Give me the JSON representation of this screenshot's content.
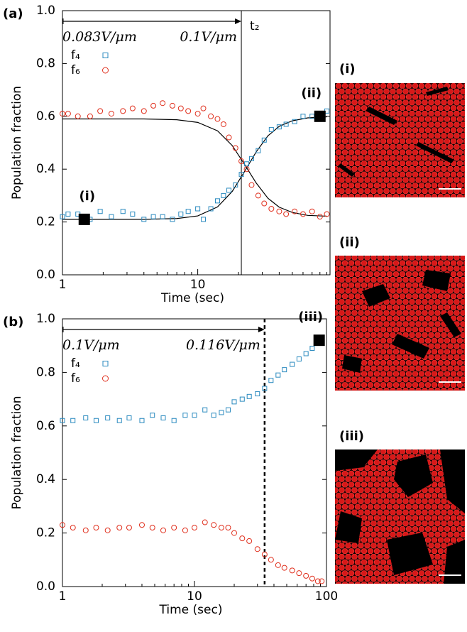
{
  "chart_data": [
    {
      "type": "scatter",
      "panel": "(a)",
      "xlabel": "Time (sec)",
      "ylabel": "Population fraction",
      "xscale": "log",
      "xlim": [
        1,
        95
      ],
      "xticks": [
        1,
        10
      ],
      "ylim": [
        0,
        1
      ],
      "yticks": [
        {
          "value": 0,
          "label": "0.0"
        },
        0.2,
        0.4,
        0.6,
        0.8,
        {
          "value": 1,
          "label": "1.0"
        }
      ],
      "series": [
        {
          "name": "f₄",
          "color": "#2a8abf",
          "marker": "square",
          "x": [
            1,
            1.1,
            1.3,
            1.6,
            1.9,
            2.3,
            2.8,
            3.3,
            4,
            4.7,
            5.5,
            6.5,
            7.5,
            8.5,
            10,
            11,
            12.5,
            14,
            15.5,
            17,
            19,
            21,
            23,
            25,
            28,
            31,
            35,
            40,
            45,
            52,
            60,
            70,
            80,
            90
          ],
          "values": [
            0.22,
            0.23,
            0.23,
            0.21,
            0.24,
            0.22,
            0.24,
            0.23,
            0.21,
            0.22,
            0.22,
            0.21,
            0.23,
            0.24,
            0.25,
            0.21,
            0.25,
            0.28,
            0.3,
            0.32,
            0.34,
            0.38,
            0.42,
            0.44,
            0.47,
            0.51,
            0.55,
            0.56,
            0.57,
            0.58,
            0.6,
            0.6,
            0.61,
            0.62
          ]
        },
        {
          "name": "f₆",
          "color": "#e0301e",
          "marker": "circle",
          "x": [
            1,
            1.1,
            1.3,
            1.6,
            1.9,
            2.3,
            2.8,
            3.3,
            4,
            4.7,
            5.5,
            6.5,
            7.5,
            8.5,
            10,
            11,
            12.5,
            14,
            15.5,
            17,
            19,
            21,
            23,
            25,
            28,
            31,
            35,
            40,
            45,
            52,
            60,
            70,
            80,
            90
          ],
          "values": [
            0.61,
            0.61,
            0.6,
            0.6,
            0.62,
            0.61,
            0.62,
            0.63,
            0.62,
            0.64,
            0.65,
            0.64,
            0.63,
            0.62,
            0.61,
            0.63,
            0.6,
            0.59,
            0.57,
            0.52,
            0.48,
            0.43,
            0.4,
            0.34,
            0.3,
            0.27,
            0.25,
            0.24,
            0.23,
            0.24,
            0.23,
            0.24,
            0.22,
            0.23
          ]
        }
      ],
      "fits": [
        {
          "x": [
            1,
            2,
            4,
            7,
            10,
            14,
            18,
            22,
            27,
            33,
            40,
            50,
            65,
            90
          ],
          "values": [
            0.21,
            0.21,
            0.21,
            0.213,
            0.223,
            0.257,
            0.316,
            0.388,
            0.465,
            0.526,
            0.562,
            0.583,
            0.594,
            0.598
          ]
        },
        {
          "x": [
            1,
            2,
            4,
            7,
            10,
            14,
            18,
            22,
            27,
            33,
            40,
            50,
            65,
            90
          ],
          "values": [
            0.59,
            0.59,
            0.59,
            0.587,
            0.577,
            0.545,
            0.489,
            0.421,
            0.348,
            0.29,
            0.256,
            0.236,
            0.225,
            0.222
          ]
        }
      ],
      "vline": {
        "x": 21,
        "label": "t₂",
        "style": "solid"
      },
      "arrow_labels": [
        "0.083V/μm",
        "0.1V/μm"
      ],
      "markers": [
        {
          "label": "(i)",
          "x": 1.45,
          "y": 0.21
        },
        {
          "label": "(ii)",
          "x": 80,
          "y": 0.6
        }
      ]
    },
    {
      "type": "scatter",
      "panel": "(b)",
      "xlabel": "Time (sec)",
      "ylabel": "Population fraction",
      "xscale": "log",
      "xlim": [
        1,
        100
      ],
      "xticks": [
        1,
        10,
        100
      ],
      "ylim": [
        0,
        1
      ],
      "yticks": [
        {
          "value": 0,
          "label": "0.0"
        },
        0.2,
        0.4,
        0.6,
        0.8,
        {
          "value": 1,
          "label": "1.0"
        }
      ],
      "series": [
        {
          "name": "f₄",
          "color": "#2a8abf",
          "marker": "square",
          "x": [
            1,
            1.2,
            1.5,
            1.8,
            2.2,
            2.7,
            3.2,
            4,
            4.8,
            5.8,
            7,
            8.5,
            10,
            12,
            14,
            16,
            18,
            20,
            23,
            26,
            30,
            34,
            38,
            43,
            48,
            55,
            62,
            70,
            78,
            86,
            92
          ],
          "values": [
            0.62,
            0.62,
            0.63,
            0.62,
            0.63,
            0.62,
            0.63,
            0.62,
            0.64,
            0.63,
            0.62,
            0.64,
            0.64,
            0.66,
            0.64,
            0.65,
            0.66,
            0.69,
            0.7,
            0.71,
            0.72,
            0.74,
            0.77,
            0.79,
            0.81,
            0.83,
            0.85,
            0.87,
            0.89,
            0.91,
            0.93
          ]
        },
        {
          "name": "f₆",
          "color": "#e0301e",
          "marker": "circle",
          "x": [
            1,
            1.2,
            1.5,
            1.8,
            2.2,
            2.7,
            3.2,
            4,
            4.8,
            5.8,
            7,
            8.5,
            10,
            12,
            14,
            16,
            18,
            20,
            23,
            26,
            30,
            34,
            38,
            43,
            48,
            55,
            62,
            70,
            78,
            86,
            92
          ],
          "values": [
            0.23,
            0.22,
            0.21,
            0.22,
            0.21,
            0.22,
            0.22,
            0.23,
            0.22,
            0.21,
            0.22,
            0.21,
            0.22,
            0.24,
            0.23,
            0.22,
            0.22,
            0.2,
            0.18,
            0.17,
            0.14,
            0.12,
            0.1,
            0.08,
            0.07,
            0.06,
            0.05,
            0.04,
            0.03,
            0.02,
            0.02
          ]
        }
      ],
      "fits": [],
      "vline": {
        "x": 34,
        "style": "dashed"
      },
      "arrow_labels": [
        "0.1V/μm",
        "0.116V/μm"
      ],
      "markers": [
        {
          "label": "(iii)",
          "x": 88,
          "y": 0.92
        }
      ]
    }
  ],
  "images": [
    {
      "label": "(i)"
    },
    {
      "label": "(ii)"
    },
    {
      "label": "(iii)"
    }
  ]
}
